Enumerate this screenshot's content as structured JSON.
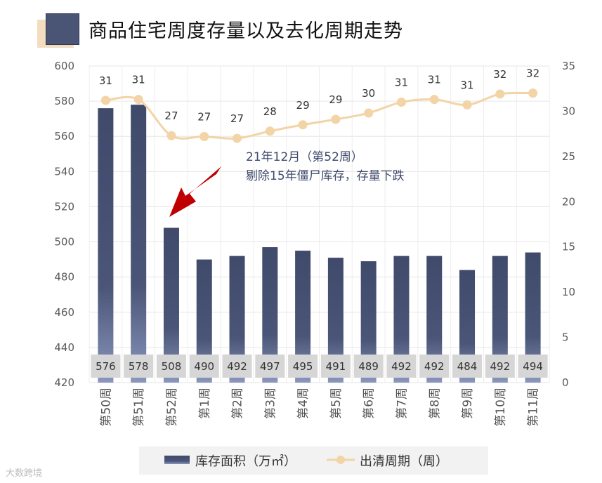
{
  "title": "商品住宅周度存量以及去化周期走势",
  "annotation": {
    "line1": "21年12月（第52周）",
    "line2": "剔除15年僵尸库存，存量下跌"
  },
  "watermark": "大数跨境",
  "chart_data": {
    "type": "bar+line",
    "categories": [
      "第50周",
      "第51周",
      "第52周",
      "第1周",
      "第2周",
      "第3周",
      "第4周",
      "第5周",
      "第6周",
      "第7周",
      "第8周",
      "第9周",
      "第10周",
      "第11周"
    ],
    "series": [
      {
        "name": "库存面积（万㎡）",
        "type": "bar",
        "axis": "left",
        "values": [
          576,
          578,
          508,
          490,
          492,
          497,
          495,
          491,
          489,
          492,
          492,
          484,
          492,
          494
        ]
      },
      {
        "name": "出清周期（周）",
        "type": "line",
        "axis": "right",
        "values": [
          31.2,
          31.3,
          27.3,
          27.2,
          27.0,
          27.8,
          28.5,
          29.1,
          29.8,
          31.0,
          31.3,
          30.7,
          31.9,
          32.0
        ],
        "labels": [
          "31",
          "31",
          "27",
          "27",
          "27",
          "28",
          "29",
          "29",
          "30",
          "31",
          "31",
          "31",
          "32",
          "32"
        ]
      }
    ],
    "yLeft": {
      "min": 420,
      "max": 600,
      "ticks": [
        420,
        440,
        460,
        480,
        500,
        520,
        540,
        560,
        580,
        600
      ]
    },
    "yRight": {
      "min": 0,
      "max": 35,
      "ticks": [
        0,
        5,
        10,
        15,
        20,
        25,
        30,
        35
      ]
    },
    "colors": {
      "bar_top": "#404a6b",
      "bar_bottom": "#8a96bd",
      "line": "#f2d4a6",
      "arrow": "#c00000",
      "label_box": "#d6d6d6"
    },
    "legend": [
      "库存面积（万㎡）",
      "出清周期（周）"
    ]
  }
}
